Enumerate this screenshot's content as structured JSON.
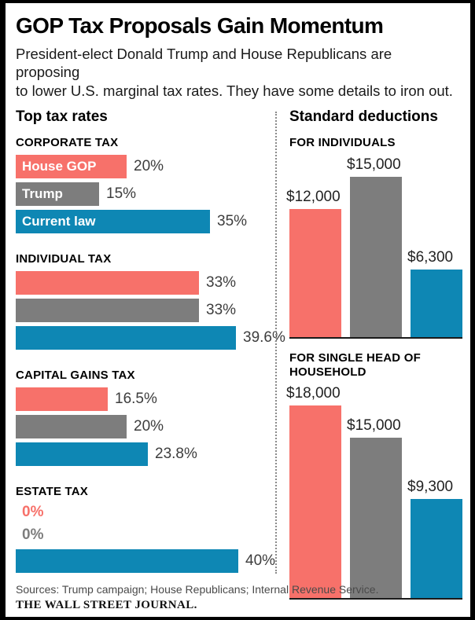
{
  "header": {
    "title": "GOP Tax Proposals Gain Momentum",
    "subtitle": "President-elect Donald Trump and House Republicans are proposing\nto lower U.S. marginal tax rates. They have some details to iron out."
  },
  "colors": {
    "house_gop": "#f7716a",
    "trump": "#7d7d7d",
    "current_law": "#0e87b4",
    "baseline": "#1a1a1a",
    "divider": "#8a8a8a"
  },
  "chart_data": [
    {
      "type": "bar",
      "orientation": "horizontal",
      "title": "Top tax rates",
      "unit": "%",
      "xlim": [
        0,
        40
      ],
      "legend_position": "inside-first-group",
      "series": [
        "House GOP",
        "Trump",
        "Current law"
      ],
      "series_colors": {
        "House GOP": "#f7716a",
        "Trump": "#7d7d7d",
        "Current law": "#0e87b4"
      },
      "groups": [
        {
          "category": "CORPORATE TAX",
          "values": [
            {
              "series": "House GOP",
              "value": 20,
              "label": "20%",
              "inside_label": "House GOP"
            },
            {
              "series": "Trump",
              "value": 15,
              "label": "15%",
              "inside_label": "Trump"
            },
            {
              "series": "Current law",
              "value": 35,
              "label": "35%",
              "inside_label": "Current law"
            }
          ]
        },
        {
          "category": "INDIVIDUAL TAX",
          "values": [
            {
              "series": "House GOP",
              "value": 33,
              "label": "33%"
            },
            {
              "series": "Trump",
              "value": 33,
              "label": "33%"
            },
            {
              "series": "Current law",
              "value": 39.6,
              "label": "39.6%"
            }
          ]
        },
        {
          "category": "CAPITAL GAINS TAX",
          "values": [
            {
              "series": "House GOP",
              "value": 16.5,
              "label": "16.5%"
            },
            {
              "series": "Trump",
              "value": 20,
              "label": "20%"
            },
            {
              "series": "Current law",
              "value": 23.8,
              "label": "23.8%"
            }
          ]
        },
        {
          "category": "ESTATE TAX",
          "values": [
            {
              "series": "House GOP",
              "value": 0,
              "label": "0%"
            },
            {
              "series": "Trump",
              "value": 0,
              "label": "0%"
            },
            {
              "series": "Current law",
              "value": 40,
              "label": "40%"
            }
          ]
        }
      ]
    },
    {
      "type": "bar",
      "orientation": "vertical",
      "title": "Standard deductions",
      "unit": "USD",
      "series": [
        "House GOP",
        "Trump",
        "Current law"
      ],
      "series_colors": {
        "House GOP": "#f7716a",
        "Trump": "#7d7d7d",
        "Current law": "#0e87b4"
      },
      "charts": [
        {
          "category": "FOR INDIVIDUALS",
          "values": [
            {
              "series": "House GOP",
              "value": 12000,
              "label": "$12,000"
            },
            {
              "series": "Trump",
              "value": 15000,
              "label": "$15,000"
            },
            {
              "series": "Current law",
              "value": 6300,
              "label": "$6,300"
            }
          ]
        },
        {
          "category": "FOR SINGLE HEAD OF HOUSEHOLD",
          "values": [
            {
              "series": "House GOP",
              "value": 18000,
              "label": "$18,000"
            },
            {
              "series": "Trump",
              "value": 15000,
              "label": "$15,000"
            },
            {
              "series": "Current law",
              "value": 9300,
              "label": "$9,300"
            }
          ]
        }
      ]
    }
  ],
  "footer": {
    "sources": "Sources: Trump campaign; House Republicans; Internal Revenue Service.",
    "brand": "THE WALL STREET JOURNAL."
  }
}
